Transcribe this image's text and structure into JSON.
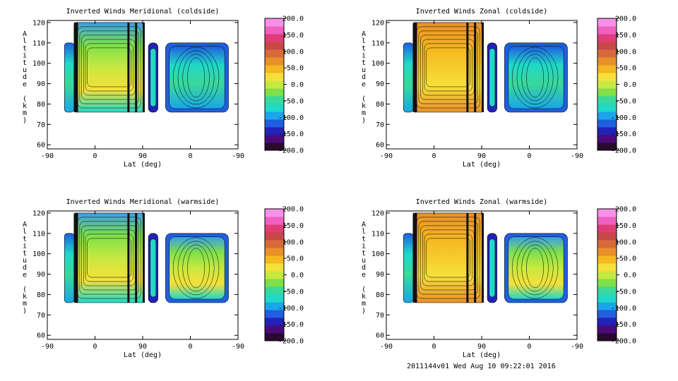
{
  "footer": "2011144v01 Wed Aug 10 09:22:01 2016",
  "colorbar": {
    "labels": [
      "200.0",
      "150.0",
      "100.0",
      "50.0",
      "0.0",
      "-50.0",
      "-100.0",
      "-150.0",
      "-200.0"
    ],
    "colors": [
      "#2a0a2e",
      "#4b0a7a",
      "#2222b8",
      "#1f5fe0",
      "#1aa6e8",
      "#20d8c8",
      "#3ad89a",
      "#7ee04a",
      "#c8e840",
      "#f5e03a",
      "#f5b820",
      "#e8902a",
      "#d86a3a",
      "#c84848",
      "#e03c78",
      "#f060c0",
      "#f890e8"
    ]
  },
  "chart_data": [
    {
      "type": "heatmap",
      "title": "Inverted Winds Meridional (coldside)",
      "xlabel": "Lat (deg)",
      "ylabel": "Altitude (km)",
      "xticks": [
        "-90",
        "0",
        "90",
        "0",
        "-90"
      ],
      "yticks": [
        "60",
        "70",
        "80",
        "90",
        "100",
        "110",
        "120"
      ],
      "ylim": [
        58,
        121
      ],
      "zlim": [
        -200,
        200
      ]
    },
    {
      "type": "heatmap",
      "title": "Inverted Winds Zonal (coldside)",
      "xlabel": "Lat (deg)",
      "ylabel": "Altitude (km)",
      "xticks": [
        "-90",
        "0",
        "90",
        "0",
        "-90"
      ],
      "yticks": [
        "60",
        "70",
        "80",
        "90",
        "100",
        "110",
        "120"
      ],
      "ylim": [
        58,
        121
      ],
      "zlim": [
        -200,
        200
      ]
    },
    {
      "type": "heatmap",
      "title": "Inverted Winds Meridional (warmside)",
      "xlabel": "Lat (deg)",
      "ylabel": "Altitude (km)",
      "xticks": [
        "-90",
        "0",
        "90",
        "0",
        "-90"
      ],
      "yticks": [
        "60",
        "70",
        "80",
        "90",
        "100",
        "110",
        "120"
      ],
      "ylim": [
        58,
        121
      ],
      "zlim": [
        -200,
        200
      ]
    },
    {
      "type": "heatmap",
      "title": "Inverted Winds Zonal (warmside)",
      "xlabel": "Lat (deg)",
      "ylabel": "Altitude (km)",
      "xticks": [
        "-90",
        "0",
        "90",
        "0",
        "-90"
      ],
      "yticks": [
        "60",
        "70",
        "80",
        "90",
        "100",
        "110",
        "120"
      ],
      "ylim": [
        58,
        121
      ],
      "zlim": [
        -200,
        200
      ]
    }
  ]
}
